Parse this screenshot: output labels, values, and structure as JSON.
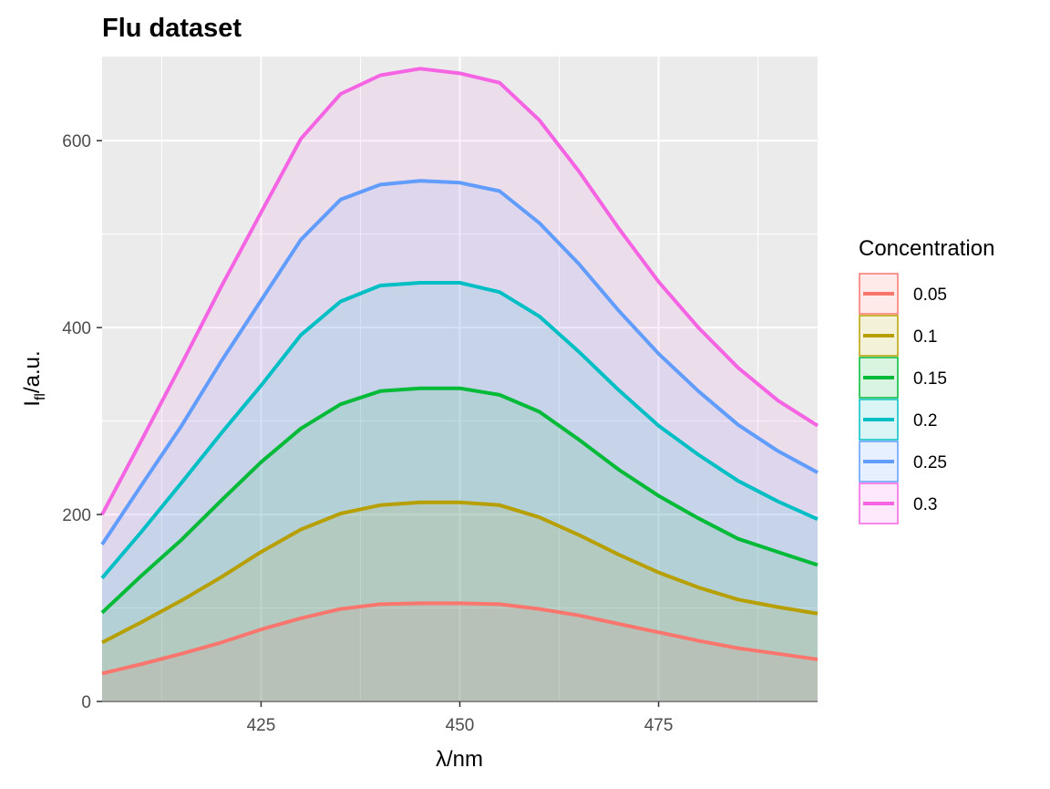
{
  "chart_data": {
    "type": "area",
    "title": "Flu dataset",
    "xlabel": "λ/nm",
    "ylabel": "Ifl/a.u.",
    "ylabel_main": "I",
    "ylabel_sub": "fl",
    "ylabel_rest": "/a.u.",
    "xlim": [
      405,
      495
    ],
    "ylim": [
      0,
      690
    ],
    "x_ticks": [
      425,
      450,
      475
    ],
    "y_ticks": [
      0,
      200,
      400,
      600
    ],
    "grid": true,
    "legend_title": "Concentration",
    "legend_position": "right",
    "x": [
      405,
      410,
      415,
      420,
      425,
      430,
      435,
      440,
      445,
      450,
      455,
      460,
      465,
      470,
      475,
      480,
      485,
      490,
      495
    ],
    "series": [
      {
        "name": "0.05",
        "color": "#F8766D",
        "values": [
          30,
          40,
          51,
          63,
          77,
          89,
          99,
          104,
          105,
          105,
          104,
          99,
          92,
          83,
          74,
          65,
          57,
          51,
          45
        ]
      },
      {
        "name": "0.1",
        "color": "#B79F00",
        "values": [
          63,
          85,
          108,
          133,
          160,
          184,
          201,
          210,
          213,
          213,
          210,
          197,
          178,
          157,
          138,
          122,
          109,
          101,
          94
        ]
      },
      {
        "name": "0.15",
        "color": "#00BA38",
        "values": [
          95,
          135,
          173,
          215,
          256,
          292,
          318,
          332,
          335,
          335,
          328,
          310,
          280,
          248,
          220,
          196,
          174,
          160,
          146
        ]
      },
      {
        "name": "0.2",
        "color": "#00BFC4",
        "values": [
          132,
          182,
          234,
          287,
          338,
          392,
          428,
          445,
          448,
          448,
          438,
          412,
          374,
          333,
          295,
          264,
          236,
          214,
          195
        ]
      },
      {
        "name": "0.25",
        "color": "#619CFF",
        "values": [
          168,
          232,
          295,
          364,
          429,
          494,
          537,
          553,
          557,
          555,
          546,
          512,
          468,
          418,
          372,
          332,
          296,
          268,
          245
        ]
      },
      {
        "name": "0.3",
        "color": "#F564E3",
        "values": [
          200,
          280,
          361,
          444,
          523,
          602,
          650,
          670,
          677,
          672,
          662,
          622,
          567,
          506,
          449,
          400,
          357,
          322,
          295
        ]
      }
    ]
  }
}
